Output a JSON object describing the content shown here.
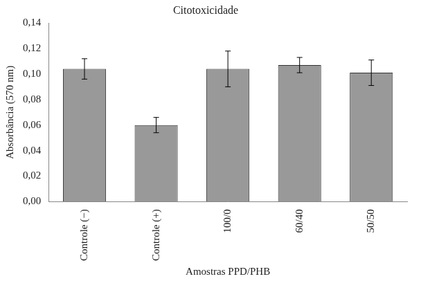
{
  "chart_data": {
    "type": "bar",
    "title": "Citotoxicidade",
    "x_label": "Amostras PPD/PHB",
    "y_label": "Absorbância (570 nm)",
    "categories": [
      "Controle (−)",
      "Controle (+)",
      "100/0",
      "60/40",
      "50/50"
    ],
    "values": [
      0.104,
      0.06,
      0.104,
      0.107,
      0.101
    ],
    "errors": [
      0.008,
      0.006,
      0.014,
      0.006,
      0.01
    ],
    "color": "#999999",
    "ylim": [
      0,
      0.14
    ],
    "yticks": [
      {
        "value": 0,
        "label": "0,00"
      },
      {
        "value": 0.02,
        "label": "0,02"
      },
      {
        "value": 0.04,
        "label": "0,04"
      },
      {
        "value": 0.06,
        "label": "0,06"
      },
      {
        "value": 0.08,
        "label": "0,08"
      },
      {
        "value": 0.1,
        "label": "0,10"
      },
      {
        "value": 0.12,
        "label": "0,12"
      },
      {
        "value": 0.14,
        "label": "0,14"
      }
    ],
    "grid": false
  }
}
